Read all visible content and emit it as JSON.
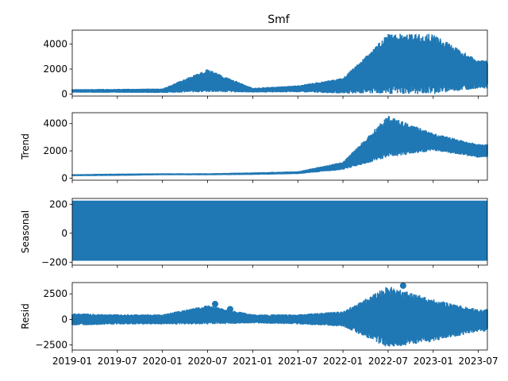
{
  "figure": {
    "title": "Smf"
  },
  "colors": {
    "series": "#1f77b4",
    "axis": "#000000",
    "background": "#ffffff"
  },
  "chart_data": [
    {
      "type": "line",
      "panel": "observed",
      "title": "Smf",
      "ylabel": "",
      "ylim": [
        -150,
        5100
      ],
      "yticks": [
        0,
        2000,
        4000
      ],
      "x": [
        "2019-01",
        "2019-07",
        "2020-01",
        "2020-07",
        "2021-01",
        "2021-07",
        "2022-01",
        "2022-07",
        "2023-01",
        "2023-07"
      ],
      "envelope_low": [
        120,
        110,
        100,
        150,
        130,
        150,
        50,
        0,
        0,
        450
      ],
      "envelope_high": [
        400,
        420,
        450,
        2000,
        500,
        700,
        1300,
        4800,
        4800,
        2700
      ]
    },
    {
      "type": "line",
      "panel": "trend",
      "ylabel": "Trend",
      "ylim": [
        -150,
        4800
      ],
      "yticks": [
        0,
        2000,
        4000
      ],
      "x": [
        "2019-01",
        "2019-07",
        "2020-01",
        "2020-07",
        "2021-01",
        "2021-07",
        "2022-01",
        "2022-07",
        "2023-01",
        "2023-07"
      ],
      "envelope_low": [
        150,
        170,
        220,
        220,
        240,
        300,
        600,
        1500,
        2000,
        1500
      ],
      "envelope_high": [
        280,
        330,
        350,
        350,
        420,
        500,
        1200,
        4600,
        3300,
        2500
      ]
    },
    {
      "type": "area",
      "panel": "seasonal",
      "ylabel": "Seasonal",
      "ylim": [
        -220,
        240
      ],
      "yticks": [
        -200,
        0,
        200
      ],
      "x": [
        "2019-01",
        "2023-08"
      ],
      "band": [
        -190,
        225
      ]
    },
    {
      "type": "scatter",
      "panel": "residual",
      "ylabel": "Resid",
      "ylim": [
        -3000,
        3600
      ],
      "yticks": [
        -2500,
        0,
        2500
      ],
      "x": [
        "2019-01",
        "2019-07",
        "2020-01",
        "2020-07",
        "2021-01",
        "2021-07",
        "2022-01",
        "2022-07",
        "2023-01",
        "2023-07"
      ],
      "envelope_low": [
        -600,
        -500,
        -500,
        -500,
        -400,
        -500,
        -700,
        -2800,
        -2200,
        -1200
      ],
      "envelope_high": [
        600,
        500,
        500,
        1400,
        500,
        500,
        800,
        3300,
        2000,
        1000
      ],
      "outliers": [
        {
          "x": "2020-08",
          "y": 1500
        },
        {
          "x": "2020-10",
          "y": 1000
        },
        {
          "x": "2022-09",
          "y": 3300
        }
      ]
    }
  ],
  "xaxis": {
    "tick_labels": [
      "2019-01",
      "2019-07",
      "2020-01",
      "2020-07",
      "2021-01",
      "2021-07",
      "2022-01",
      "2022-07",
      "2023-01",
      "2023-07"
    ]
  }
}
